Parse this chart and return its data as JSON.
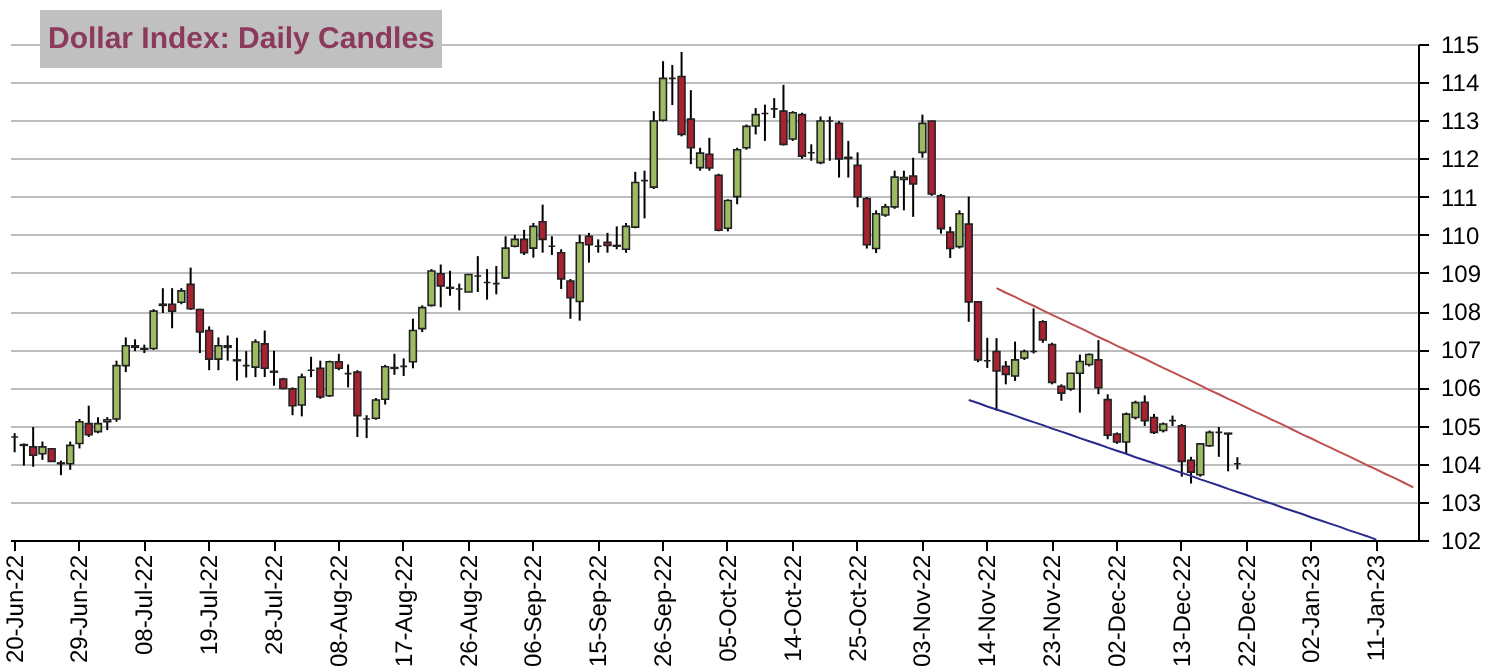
{
  "chart_data": {
    "type": "candlestick",
    "title": "Dollar Index: Daily Candles",
    "categories": [
      "20-Jun-22",
      null,
      null,
      null,
      null,
      null,
      null,
      "29-Jun-22",
      null,
      null,
      null,
      null,
      null,
      null,
      "08-Jul-22",
      null,
      null,
      null,
      null,
      null,
      null,
      "19-Jul-22",
      null,
      null,
      null,
      null,
      null,
      null,
      "28-Jul-22",
      null,
      null,
      null,
      null,
      null,
      null,
      "08-Aug-22",
      null,
      null,
      null,
      null,
      null,
      null,
      "17-Aug-22",
      null,
      null,
      null,
      null,
      null,
      null,
      "26-Aug-22",
      null,
      null,
      null,
      null,
      null,
      null,
      "06-Sep-22",
      null,
      null,
      null,
      null,
      null,
      null,
      "15-Sep-22",
      null,
      null,
      null,
      null,
      null,
      null,
      "26-Sep-22",
      null,
      null,
      null,
      null,
      null,
      null,
      "05-Oct-22",
      null,
      null,
      null,
      null,
      null,
      null,
      "14-Oct-22",
      null,
      null,
      null,
      null,
      null,
      null,
      "25-Oct-22",
      null,
      null,
      null,
      null,
      null,
      null,
      "03-Nov-22",
      null,
      null,
      null,
      null,
      null,
      null,
      "14-Nov-22",
      null,
      null,
      null,
      null,
      null,
      null,
      "23-Nov-22",
      null,
      null,
      null,
      null,
      null,
      null,
      "02-Dec-22",
      null,
      null,
      null,
      null,
      null,
      null,
      "13-Dec-22",
      null,
      null,
      null,
      null,
      null,
      null,
      "22-Dec-22",
      null,
      null,
      null,
      null,
      null,
      null,
      "02-Jan-23",
      null,
      null,
      null,
      null,
      null,
      null,
      "11-Jan-23",
      null,
      null,
      null,
      null
    ],
    "ohlc": [
      [
        104.7,
        104.8,
        104.3,
        104.7
      ],
      [
        104.5,
        104.53,
        103.95,
        104.48
      ],
      [
        104.44,
        104.96,
        103.92,
        104.22
      ],
      [
        104.26,
        104.58,
        104.1,
        104.44
      ],
      [
        104.39,
        104.4,
        104.05,
        104.06
      ],
      [
        104.0,
        104.08,
        103.7,
        104.02
      ],
      [
        104.0,
        104.58,
        103.84,
        104.48
      ],
      [
        104.53,
        105.17,
        104.4,
        105.1
      ],
      [
        105.05,
        105.52,
        104.7,
        104.76
      ],
      [
        104.84,
        105.22,
        104.8,
        105.05
      ],
      [
        105.1,
        105.22,
        104.88,
        105.15
      ],
      [
        105.17,
        106.7,
        105.1,
        106.57
      ],
      [
        106.57,
        107.31,
        106.4,
        107.09
      ],
      [
        107.05,
        107.26,
        106.95,
        107.09
      ],
      [
        107.0,
        107.12,
        106.9,
        107.02
      ],
      [
        107.02,
        108.05,
        106.98,
        108.0
      ],
      [
        108.15,
        108.6,
        107.95,
        108.18
      ],
      [
        108.18,
        108.6,
        107.55,
        108.0
      ],
      [
        108.23,
        108.6,
        108.18,
        108.53
      ],
      [
        108.7,
        109.14,
        108.03,
        108.06
      ],
      [
        108.04,
        108.06,
        106.9,
        107.45
      ],
      [
        107.49,
        107.6,
        106.45,
        106.74
      ],
      [
        106.74,
        107.31,
        106.45,
        107.09
      ],
      [
        107.05,
        107.36,
        106.7,
        107.09
      ],
      [
        106.7,
        107.3,
        106.18,
        106.72
      ],
      [
        106.57,
        106.95,
        106.26,
        106.57
      ],
      [
        106.53,
        107.26,
        106.27,
        107.19
      ],
      [
        107.14,
        107.49,
        106.27,
        106.5
      ],
      [
        106.42,
        106.96,
        106.04,
        106.4
      ],
      [
        106.22,
        106.25,
        105.95,
        105.97
      ],
      [
        105.96,
        106.0,
        105.27,
        105.52
      ],
      [
        105.54,
        106.36,
        105.24,
        106.27
      ],
      [
        106.45,
        106.8,
        106.27,
        106.45
      ],
      [
        106.5,
        106.7,
        105.7,
        105.75
      ],
      [
        105.78,
        106.7,
        105.75,
        106.67
      ],
      [
        106.67,
        106.88,
        106.45,
        106.5
      ],
      [
        106.36,
        106.6,
        106.0,
        106.36
      ],
      [
        106.4,
        106.45,
        104.7,
        105.26
      ],
      [
        105.17,
        105.27,
        104.67,
        105.17
      ],
      [
        105.19,
        105.72,
        105.15,
        105.67
      ],
      [
        105.69,
        106.59,
        105.55,
        106.54
      ],
      [
        106.5,
        106.88,
        106.33,
        106.52
      ],
      [
        106.55,
        106.76,
        106.3,
        106.55
      ],
      [
        106.67,
        107.8,
        106.5,
        107.49
      ],
      [
        107.54,
        108.15,
        107.45,
        108.09
      ],
      [
        108.15,
        109.1,
        108.12,
        109.05
      ],
      [
        108.98,
        109.22,
        108.1,
        108.66
      ],
      [
        108.6,
        109.06,
        108.4,
        108.62
      ],
      [
        108.58,
        108.72,
        108.02,
        108.58
      ],
      [
        108.5,
        108.96,
        108.5,
        108.96
      ],
      [
        108.92,
        109.44,
        108.5,
        108.92
      ],
      [
        108.75,
        109.1,
        108.3,
        108.75
      ],
      [
        108.72,
        109.18,
        108.44,
        108.72
      ],
      [
        108.87,
        109.96,
        108.84,
        109.65
      ],
      [
        109.7,
        110.0,
        109.67,
        109.88
      ],
      [
        109.88,
        110.13,
        109.47,
        109.53
      ],
      [
        109.65,
        110.31,
        109.4,
        110.22
      ],
      [
        110.34,
        110.79,
        109.53,
        109.88
      ],
      [
        109.7,
        109.96,
        109.47,
        109.7
      ],
      [
        109.53,
        109.62,
        108.58,
        108.84
      ],
      [
        108.79,
        108.84,
        107.8,
        108.35
      ],
      [
        108.25,
        110.0,
        107.75,
        109.79
      ],
      [
        109.96,
        110.05,
        109.27,
        109.74
      ],
      [
        109.7,
        109.88,
        109.53,
        109.7
      ],
      [
        109.8,
        110.05,
        109.53,
        109.72
      ],
      [
        109.72,
        110.22,
        109.62,
        109.7
      ],
      [
        109.62,
        110.31,
        109.53,
        110.22
      ],
      [
        110.2,
        111.65,
        110.17,
        111.37
      ],
      [
        111.42,
        111.68,
        110.43,
        111.42
      ],
      [
        111.25,
        113.24,
        111.2,
        112.98
      ],
      [
        113.0,
        114.55,
        112.97,
        114.1
      ],
      [
        114.1,
        114.45,
        113.4,
        114.1
      ],
      [
        114.15,
        114.79,
        112.58,
        112.63
      ],
      [
        113.03,
        113.79,
        111.85,
        112.28
      ],
      [
        111.76,
        112.28,
        111.68,
        112.14
      ],
      [
        112.11,
        112.54,
        111.68,
        111.75
      ],
      [
        111.56,
        111.6,
        110.09,
        110.12
      ],
      [
        110.17,
        110.93,
        110.09,
        110.9
      ],
      [
        111.0,
        112.28,
        110.8,
        112.23
      ],
      [
        112.28,
        112.89,
        112.23,
        112.84
      ],
      [
        112.85,
        113.32,
        112.63,
        113.15
      ],
      [
        113.18,
        113.41,
        112.46,
        113.18
      ],
      [
        113.3,
        113.58,
        113.06,
        113.3
      ],
      [
        113.24,
        113.93,
        112.34,
        112.37
      ],
      [
        112.51,
        113.24,
        112.46,
        113.2
      ],
      [
        113.15,
        113.2,
        111.99,
        112.06
      ],
      [
        112.15,
        112.37,
        111.94,
        112.15
      ],
      [
        111.89,
        113.1,
        111.85,
        112.98
      ],
      [
        112.98,
        113.1,
        111.94,
        112.98
      ],
      [
        112.92,
        112.98,
        111.5,
        111.99
      ],
      [
        112.03,
        112.46,
        111.5,
        112.0
      ],
      [
        111.82,
        112.16,
        110.72,
        110.99
      ],
      [
        110.95,
        110.99,
        109.64,
        109.74
      ],
      [
        109.64,
        110.64,
        109.52,
        110.55
      ],
      [
        110.52,
        110.81,
        110.47,
        110.73
      ],
      [
        110.73,
        111.68,
        110.68,
        111.51
      ],
      [
        111.45,
        111.68,
        110.64,
        111.5
      ],
      [
        111.54,
        112.02,
        110.47,
        111.33
      ],
      [
        112.16,
        113.15,
        112.02,
        112.92
      ],
      [
        112.98,
        112.98,
        111.02,
        111.07
      ],
      [
        111.02,
        111.07,
        110.03,
        110.16
      ],
      [
        110.07,
        110.21,
        109.39,
        109.64
      ],
      [
        109.69,
        110.64,
        109.64,
        110.55
      ],
      [
        110.28,
        111.0,
        107.72,
        108.24
      ],
      [
        108.24,
        108.24,
        106.66,
        106.72
      ],
      [
        106.7,
        107.3,
        106.51,
        106.7
      ],
      [
        106.94,
        107.29,
        105.39,
        106.43
      ],
      [
        106.55,
        106.69,
        106.08,
        106.34
      ],
      [
        106.3,
        107.2,
        106.17,
        106.72
      ],
      [
        106.77,
        106.99,
        106.72,
        106.94
      ],
      [
        106.94,
        108.07,
        106.89,
        106.94
      ],
      [
        107.72,
        107.76,
        107.17,
        107.24
      ],
      [
        107.12,
        107.17,
        106.08,
        106.13
      ],
      [
        106.03,
        106.08,
        105.65,
        105.85
      ],
      [
        105.96,
        106.37,
        105.91,
        106.37
      ],
      [
        106.37,
        106.86,
        105.34,
        106.68
      ],
      [
        106.6,
        106.89,
        106.55,
        106.86
      ],
      [
        106.72,
        107.24,
        105.82,
        105.99
      ],
      [
        105.68,
        105.82,
        104.64,
        104.75
      ],
      [
        104.78,
        104.82,
        104.52,
        104.57
      ],
      [
        104.57,
        105.34,
        104.26,
        105.3
      ],
      [
        105.21,
        105.65,
        105.16,
        105.6
      ],
      [
        105.61,
        105.79,
        104.99,
        105.13
      ],
      [
        105.21,
        105.3,
        104.78,
        104.82
      ],
      [
        104.87,
        105.08,
        104.82,
        105.04
      ],
      [
        105.13,
        105.26,
        104.99,
        105.13
      ],
      [
        104.99,
        105.04,
        103.66,
        104.06
      ],
      [
        104.09,
        104.18,
        103.48,
        103.78
      ],
      [
        103.71,
        104.52,
        103.66,
        104.52
      ],
      [
        104.47,
        104.87,
        104.44,
        104.82
      ],
      [
        104.82,
        104.96,
        104.18,
        104.82
      ],
      [
        104.8,
        104.8,
        103.8,
        104.78
      ],
      [
        104.0,
        104.17,
        103.85,
        104.0
      ],
      null,
      null,
      null,
      null,
      null,
      null,
      null,
      null,
      null,
      null,
      null,
      null,
      null,
      null,
      null,
      null,
      null,
      null,
      null
    ],
    "series": [
      {
        "type": "line",
        "color": "#c05050",
        "values": [
          null,
          null,
          null,
          null,
          null,
          null,
          null,
          null,
          null,
          null,
          null,
          null,
          null,
          null,
          null,
          null,
          null,
          null,
          null,
          null,
          null,
          null,
          null,
          null,
          null,
          null,
          null,
          null,
          null,
          null,
          null,
          null,
          null,
          null,
          null,
          null,
          null,
          null,
          null,
          null,
          null,
          null,
          null,
          null,
          null,
          null,
          null,
          null,
          null,
          null,
          null,
          null,
          null,
          null,
          null,
          null,
          null,
          null,
          null,
          null,
          null,
          null,
          null,
          null,
          null,
          null,
          null,
          null,
          null,
          null,
          null,
          null,
          null,
          null,
          null,
          null,
          null,
          null,
          null,
          null,
          null,
          null,
          null,
          null,
          null,
          null,
          null,
          null,
          null,
          null,
          null,
          null,
          null,
          null,
          null,
          null,
          null,
          null,
          null,
          null,
          null,
          null,
          null,
          null,
          null,
          null,
          108.6,
          108.48,
          108.37,
          108.25,
          108.14,
          108.02,
          107.9,
          107.79,
          107.67,
          107.56,
          107.44,
          107.32,
          107.21,
          107.09,
          106.98,
          106.86,
          106.75,
          106.63,
          106.51,
          106.4,
          106.28,
          106.17,
          106.05,
          105.93,
          105.82,
          105.7,
          105.59,
          105.47,
          105.35,
          105.24,
          105.12,
          105.01,
          104.89,
          104.77,
          104.66,
          104.54,
          104.43,
          104.31,
          104.2,
          104.08,
          103.96,
          103.85,
          103.73,
          103.62,
          103.5,
          103.38
        ]
      },
      {
        "type": "line",
        "color": "#2a2a8c",
        "values": [
          null,
          null,
          null,
          null,
          null,
          null,
          null,
          null,
          null,
          null,
          null,
          null,
          null,
          null,
          null,
          null,
          null,
          null,
          null,
          null,
          null,
          null,
          null,
          null,
          null,
          null,
          null,
          null,
          null,
          null,
          null,
          null,
          null,
          null,
          null,
          null,
          null,
          null,
          null,
          null,
          null,
          null,
          null,
          null,
          null,
          null,
          null,
          null,
          null,
          null,
          null,
          null,
          null,
          null,
          null,
          null,
          null,
          null,
          null,
          null,
          null,
          null,
          null,
          null,
          null,
          null,
          null,
          null,
          null,
          null,
          null,
          null,
          null,
          null,
          null,
          null,
          null,
          null,
          null,
          null,
          null,
          null,
          null,
          null,
          null,
          null,
          null,
          null,
          null,
          null,
          null,
          null,
          null,
          null,
          null,
          null,
          null,
          null,
          null,
          null,
          null,
          null,
          null,
          105.67,
          105.59,
          105.5,
          105.42,
          105.34,
          105.26,
          105.17,
          105.09,
          105.01,
          104.92,
          104.84,
          104.76,
          104.67,
          104.59,
          104.51,
          104.42,
          104.34,
          104.26,
          104.17,
          104.09,
          104.01,
          103.93,
          103.84,
          103.76,
          103.68,
          103.59,
          103.51,
          103.43,
          103.34,
          103.26,
          103.18,
          103.09,
          103.01,
          102.93,
          102.84,
          102.76,
          102.68,
          102.59,
          102.51,
          102.43,
          102.35,
          102.26,
          102.18,
          102.1,
          102.01,
          null,
          null,
          null,
          null
        ]
      }
    ],
    "ylim": [
      102,
      115
    ],
    "yticks": [
      102,
      103,
      104,
      105,
      106,
      107,
      108,
      109,
      110,
      111,
      112,
      113,
      114,
      115
    ],
    "grid": "y"
  }
}
